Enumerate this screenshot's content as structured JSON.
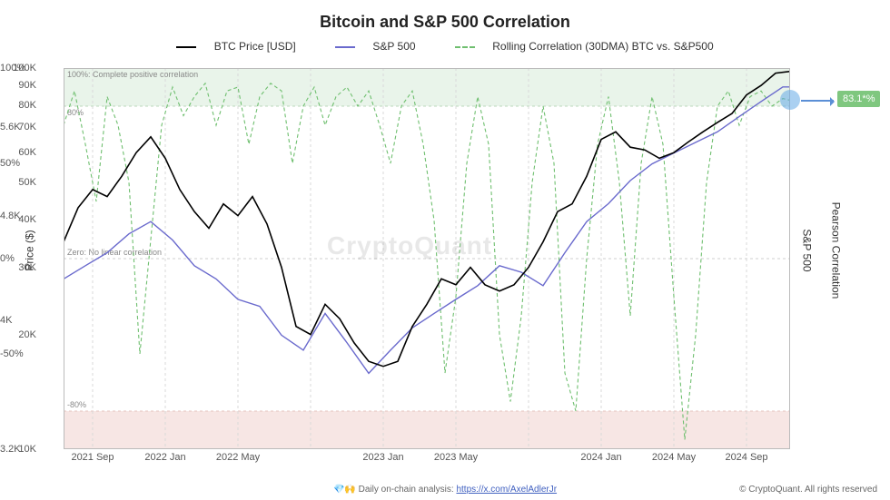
{
  "title": "Bitcoin and S&P 500 Correlation",
  "title_fontsize": 18,
  "legend": [
    {
      "label": "BTC Price [USD]",
      "color": "#000000",
      "dash": "solid"
    },
    {
      "label": "S&P 500",
      "color": "#6a6acd",
      "dash": "solid"
    },
    {
      "label": "Rolling Correlation (30DMA) BTC vs. S&P500",
      "color": "#6fbf6f",
      "dash": "dashed"
    }
  ],
  "plot": {
    "background_color": "#ffffff",
    "band_pos": {
      "y0_pct": 80,
      "y1_pct": 100,
      "fill": "#e9f4ea",
      "label": "100%: Complete positive correlation",
      "line80_label": "80%",
      "line_color": "#bcd8bc"
    },
    "band_neg": {
      "y0_pct": -100,
      "y1_pct": -80,
      "fill": "#f7e6e4",
      "label": "-80%",
      "line_color": "#e6c5c1"
    },
    "zero_line": {
      "label": "Zero: No linear correlation",
      "color": "#cfcfcf"
    },
    "btc": {
      "type": "line",
      "color": "#000000",
      "width": 1.6,
      "yaxis": "left_log",
      "points": [
        [
          0.0,
          35000
        ],
        [
          0.02,
          43000
        ],
        [
          0.04,
          48000
        ],
        [
          0.06,
          46000
        ],
        [
          0.08,
          52000
        ],
        [
          0.1,
          60000
        ],
        [
          0.12,
          66000
        ],
        [
          0.14,
          58000
        ],
        [
          0.16,
          48000
        ],
        [
          0.18,
          42000
        ],
        [
          0.2,
          38000
        ],
        [
          0.22,
          44000
        ],
        [
          0.24,
          41000
        ],
        [
          0.26,
          46000
        ],
        [
          0.28,
          39000
        ],
        [
          0.3,
          30000
        ],
        [
          0.32,
          21000
        ],
        [
          0.34,
          20000
        ],
        [
          0.36,
          24000
        ],
        [
          0.38,
          22000
        ],
        [
          0.4,
          19000
        ],
        [
          0.42,
          17000
        ],
        [
          0.44,
          16500
        ],
        [
          0.46,
          17000
        ],
        [
          0.48,
          21000
        ],
        [
          0.5,
          24000
        ],
        [
          0.52,
          28000
        ],
        [
          0.54,
          27000
        ],
        [
          0.56,
          30000
        ],
        [
          0.58,
          27000
        ],
        [
          0.6,
          26000
        ],
        [
          0.62,
          27000
        ],
        [
          0.64,
          30000
        ],
        [
          0.66,
          35000
        ],
        [
          0.68,
          42000
        ],
        [
          0.7,
          44000
        ],
        [
          0.72,
          52000
        ],
        [
          0.74,
          65000
        ],
        [
          0.76,
          68000
        ],
        [
          0.78,
          62000
        ],
        [
          0.8,
          61000
        ],
        [
          0.82,
          58000
        ],
        [
          0.84,
          60000
        ],
        [
          0.86,
          64000
        ],
        [
          0.88,
          68000
        ],
        [
          0.9,
          72000
        ],
        [
          0.92,
          76000
        ],
        [
          0.94,
          85000
        ],
        [
          0.96,
          90000
        ],
        [
          0.98,
          97000
        ],
        [
          1.0,
          98000
        ]
      ]
    },
    "sp500": {
      "type": "line",
      "color": "#6a6acd",
      "width": 1.4,
      "yaxis": "right_sp",
      "points": [
        [
          0.0,
          4300
        ],
        [
          0.03,
          4400
        ],
        [
          0.06,
          4500
        ],
        [
          0.09,
          4650
        ],
        [
          0.12,
          4750
        ],
        [
          0.15,
          4600
        ],
        [
          0.18,
          4400
        ],
        [
          0.21,
          4300
        ],
        [
          0.24,
          4150
        ],
        [
          0.27,
          4100
        ],
        [
          0.3,
          3900
        ],
        [
          0.33,
          3800
        ],
        [
          0.36,
          4050
        ],
        [
          0.39,
          3850
        ],
        [
          0.42,
          3650
        ],
        [
          0.45,
          3800
        ],
        [
          0.48,
          3950
        ],
        [
          0.51,
          4050
        ],
        [
          0.54,
          4150
        ],
        [
          0.57,
          4250
        ],
        [
          0.6,
          4400
        ],
        [
          0.63,
          4350
        ],
        [
          0.66,
          4250
        ],
        [
          0.69,
          4500
        ],
        [
          0.72,
          4750
        ],
        [
          0.75,
          4900
        ],
        [
          0.78,
          5100
        ],
        [
          0.81,
          5250
        ],
        [
          0.84,
          5350
        ],
        [
          0.87,
          5450
        ],
        [
          0.9,
          5550
        ],
        [
          0.93,
          5700
        ],
        [
          0.96,
          5850
        ],
        [
          0.99,
          6000
        ],
        [
          1.0,
          6000
        ]
      ]
    },
    "correlation": {
      "type": "line",
      "color": "#6fbf6f",
      "width": 1.1,
      "dash": "4,3",
      "yaxis": "right_corr",
      "points": [
        [
          0.0,
          70
        ],
        [
          0.015,
          88
        ],
        [
          0.03,
          60
        ],
        [
          0.045,
          30
        ],
        [
          0.06,
          85
        ],
        [
          0.075,
          70
        ],
        [
          0.09,
          40
        ],
        [
          0.105,
          -50
        ],
        [
          0.12,
          10
        ],
        [
          0.135,
          70
        ],
        [
          0.15,
          90
        ],
        [
          0.165,
          75
        ],
        [
          0.18,
          85
        ],
        [
          0.195,
          92
        ],
        [
          0.21,
          70
        ],
        [
          0.225,
          88
        ],
        [
          0.24,
          90
        ],
        [
          0.255,
          60
        ],
        [
          0.27,
          85
        ],
        [
          0.285,
          92
        ],
        [
          0.3,
          88
        ],
        [
          0.315,
          50
        ],
        [
          0.33,
          80
        ],
        [
          0.345,
          90
        ],
        [
          0.36,
          70
        ],
        [
          0.375,
          85
        ],
        [
          0.39,
          90
        ],
        [
          0.405,
          80
        ],
        [
          0.42,
          88
        ],
        [
          0.435,
          70
        ],
        [
          0.45,
          50
        ],
        [
          0.465,
          80
        ],
        [
          0.48,
          88
        ],
        [
          0.495,
          60
        ],
        [
          0.51,
          20
        ],
        [
          0.525,
          -60
        ],
        [
          0.54,
          -20
        ],
        [
          0.555,
          50
        ],
        [
          0.57,
          85
        ],
        [
          0.585,
          60
        ],
        [
          0.6,
          -40
        ],
        [
          0.615,
          -75
        ],
        [
          0.63,
          -30
        ],
        [
          0.645,
          40
        ],
        [
          0.66,
          80
        ],
        [
          0.675,
          50
        ],
        [
          0.69,
          -60
        ],
        [
          0.705,
          -80
        ],
        [
          0.72,
          0
        ],
        [
          0.735,
          60
        ],
        [
          0.75,
          85
        ],
        [
          0.765,
          40
        ],
        [
          0.78,
          -30
        ],
        [
          0.795,
          50
        ],
        [
          0.81,
          85
        ],
        [
          0.825,
          60
        ],
        [
          0.84,
          -20
        ],
        [
          0.855,
          -95
        ],
        [
          0.87,
          -40
        ],
        [
          0.885,
          40
        ],
        [
          0.9,
          80
        ],
        [
          0.915,
          88
        ],
        [
          0.93,
          70
        ],
        [
          0.945,
          85
        ],
        [
          0.96,
          88
        ],
        [
          0.975,
          80
        ],
        [
          0.99,
          84
        ],
        [
          1.0,
          83.1
        ]
      ]
    },
    "vertical_gridlines": {
      "color": "#d9d9d9",
      "dash": "3,3",
      "positions": [
        0.04,
        0.14,
        0.24,
        0.34,
        0.44,
        0.54,
        0.64,
        0.74,
        0.84,
        0.94
      ]
    }
  },
  "axes": {
    "x": {
      "label_fontsize": 11,
      "ticks": [
        {
          "pos": 0.04,
          "label": "2021 Sep"
        },
        {
          "pos": 0.14,
          "label": "2022 Jan"
        },
        {
          "pos": 0.24,
          "label": "2022 May"
        },
        {
          "pos": 0.34,
          "label": ""
        },
        {
          "pos": 0.44,
          "label": "2023 Jan"
        },
        {
          "pos": 0.54,
          "label": "2023 May"
        },
        {
          "pos": 0.64,
          "label": ""
        },
        {
          "pos": 0.74,
          "label": "2024 Jan"
        },
        {
          "pos": 0.84,
          "label": "2024 May"
        },
        {
          "pos": 0.94,
          "label": "2024 Sep"
        }
      ]
    },
    "y_left": {
      "label": "Price ($)",
      "scale": "log",
      "min": 10000,
      "max": 100000,
      "ticks": [
        {
          "v": 10000,
          "label": "10K"
        },
        {
          "v": 20000,
          "label": "20K"
        },
        {
          "v": 30000,
          "label": "30K"
        },
        {
          "v": 40000,
          "label": "40K"
        },
        {
          "v": 50000,
          "label": "50K"
        },
        {
          "v": 60000,
          "label": "60K"
        },
        {
          "v": 70000,
          "label": "70K"
        },
        {
          "v": 80000,
          "label": "80K"
        },
        {
          "v": 90000,
          "label": "90K"
        },
        {
          "v": 100000,
          "label": "100K"
        }
      ]
    },
    "y_sp": {
      "label": "S&P 500",
      "scale": "log",
      "min": 3200,
      "max": 6200,
      "ticks": [
        {
          "v": 3200,
          "label": "3.2K"
        },
        {
          "v": 4000,
          "label": "4K"
        },
        {
          "v": 4800,
          "label": "4.8K"
        },
        {
          "v": 5600,
          "label": "5.6K"
        }
      ]
    },
    "y_corr": {
      "label": "Pearson Correlation",
      "scale": "linear",
      "min": -100,
      "max": 100,
      "ticks": [
        {
          "v": -100,
          "label": ""
        },
        {
          "v": -50,
          "label": "-50%"
        },
        {
          "v": 0,
          "label": "0%"
        },
        {
          "v": 50,
          "label": "50%"
        },
        {
          "v": 100,
          "label": "100%"
        }
      ]
    }
  },
  "callout": {
    "value": "83.1*%",
    "badge_color": "#7fc77f",
    "arrow_color": "#5b8fd6",
    "marker_color": "rgba(100,170,230,0.55)"
  },
  "watermark": "CryptoQuant",
  "footer": {
    "credit_prefix": "💎🙌 Daily on-chain analysis: ",
    "credit_link": "https://x.com/AxelAdlerJr",
    "rights": "© CryptoQuant. All rights reserved"
  }
}
